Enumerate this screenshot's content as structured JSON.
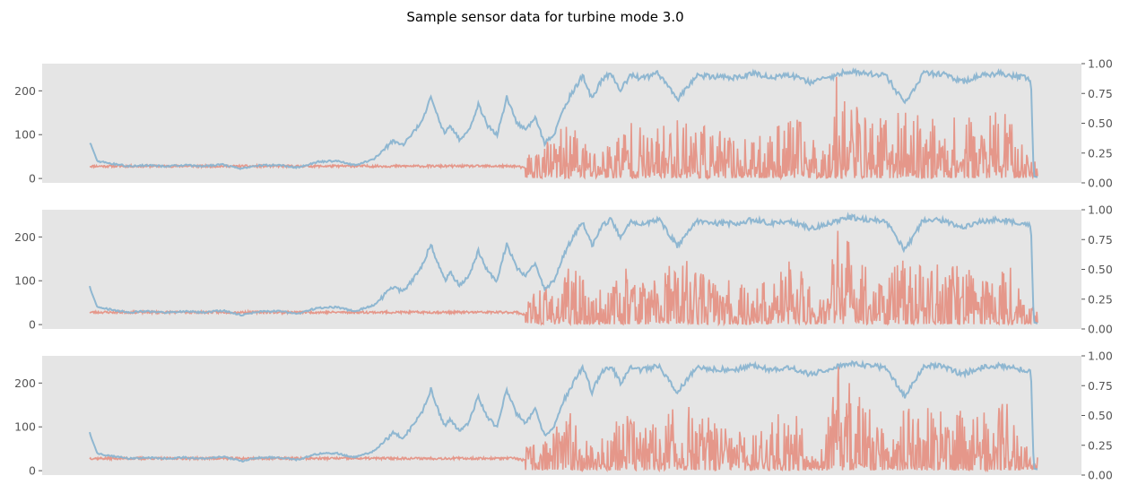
{
  "chart_data": {
    "type": "line",
    "title": "Sample sensor data for turbine mode 3.0",
    "colors": {
      "left_series": "#8ab4d0",
      "right_series": "#e48e80",
      "panel_background": "#e5e5e5",
      "tick_text": "#555555"
    },
    "grid": false,
    "x_ticks_visible": false,
    "x_range": [
      0,
      1000
    ],
    "ylim_left": [
      -10,
      262
    ],
    "yticks_left": [
      0,
      100,
      200
    ],
    "ylim_right": [
      0,
      1
    ],
    "yticks_right": [
      "0.00",
      "0.25",
      "0.50",
      "0.75",
      "1.00"
    ],
    "left_series_profile": {
      "x": [
        0,
        8,
        20,
        40,
        60,
        80,
        100,
        120,
        140,
        160,
        180,
        200,
        220,
        240,
        260,
        280,
        300,
        310,
        320,
        330,
        340,
        350,
        360,
        370,
        375,
        380,
        390,
        400,
        410,
        420,
        430,
        440,
        450,
        460,
        470,
        480,
        490,
        500,
        510,
        520,
        530,
        540,
        550,
        560,
        570,
        580,
        590,
        600,
        620,
        640,
        660,
        680,
        700,
        720,
        740,
        760,
        780,
        800,
        820,
        840,
        860,
        880,
        900,
        920,
        940,
        960,
        980,
        993,
        996,
        1000
      ],
      "y": [
        85,
        40,
        35,
        28,
        30,
        28,
        30,
        28,
        32,
        22,
        30,
        30,
        25,
        38,
        40,
        30,
        45,
        65,
        85,
        75,
        100,
        130,
        185,
        125,
        100,
        120,
        90,
        110,
        170,
        120,
        100,
        185,
        130,
        110,
        140,
        80,
        100,
        160,
        200,
        235,
        180,
        225,
        240,
        200,
        235,
        230,
        232,
        240,
        180,
        235,
        232,
        230,
        240,
        230,
        235,
        220,
        230,
        245,
        240,
        235,
        170,
        240,
        238,
        220,
        235,
        240,
        232,
        228,
        5,
        3
      ]
    },
    "right_series_profile": {
      "x": [
        0,
        200,
        400,
        430,
        450,
        460,
        470,
        490,
        510,
        530,
        550,
        570,
        590,
        610,
        630,
        660,
        700,
        740,
        760,
        775,
        790,
        820,
        860,
        900,
        940,
        970,
        980,
        1000
      ],
      "y_base": [
        0.14,
        0.14,
        0.14,
        0.14,
        0.14,
        0.12,
        0.12,
        0.12,
        0.12,
        0.12,
        0.12,
        0.12,
        0.12,
        0.12,
        0.12,
        0.12,
        0.12,
        0.12,
        0.12,
        0.12,
        0.12,
        0.12,
        0.12,
        0.12,
        0.12,
        0.12,
        0.12,
        0.13
      ],
      "y_peak": [
        0.15,
        0.16,
        0.16,
        0.2,
        0.45,
        0.3,
        0.3,
        0.4,
        0.55,
        0.3,
        0.4,
        0.6,
        0.4,
        0.55,
        0.6,
        0.45,
        0.35,
        0.6,
        0.45,
        0.3,
        1.0,
        0.55,
        0.6,
        0.55,
        0.55,
        0.65,
        0.35,
        0.2
      ]
    },
    "series": [
      {
        "axis": "left",
        "color": "#8ab4d0",
        "y_shift": 0
      },
      {
        "axis": "right",
        "color": "#e48e80",
        "y_shift": 0
      }
    ],
    "subplots": [
      {
        "seed": 11,
        "left_start": 80
      },
      {
        "seed": 23,
        "left_start": 88
      },
      {
        "seed": 37,
        "left_start": 88
      }
    ]
  }
}
